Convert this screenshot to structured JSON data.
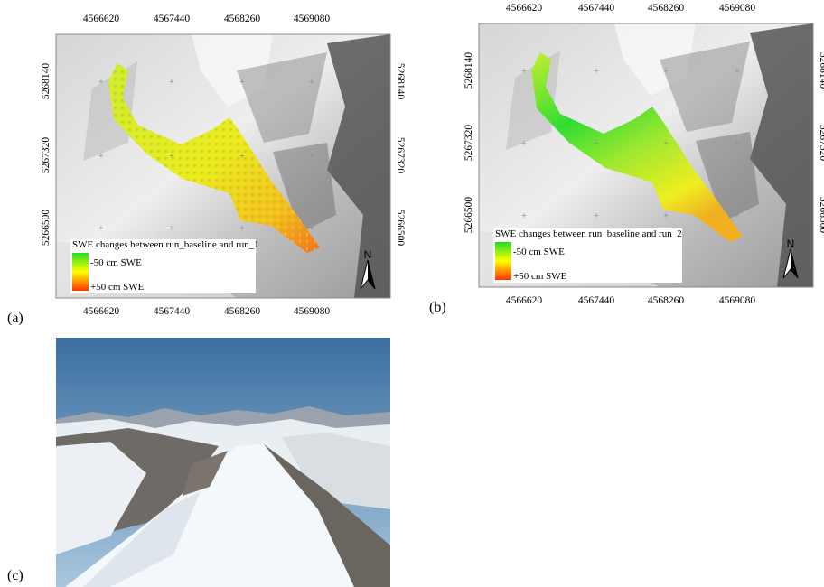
{
  "panels": [
    {
      "label": "(a)",
      "x_ticks": [
        "4566620",
        "4567440",
        "4568260",
        "4569080"
      ],
      "y_ticks": [
        "5268140",
        "5267320",
        "5266500"
      ],
      "legend": {
        "title": "SWE changes between run_baseline and run_1",
        "min": "-50 cm SWE",
        "max": "+50 cm SWE"
      },
      "north": "N"
    },
    {
      "label": "(b)",
      "x_ticks": [
        "4566620",
        "4567440",
        "4568260",
        "4569080"
      ],
      "y_ticks": [
        "5268140",
        "5267320",
        "5266500"
      ],
      "legend": {
        "title": "SWE changes between run_baseline and run_2",
        "min": "-50 cm SWE",
        "max": "+50 cm SWE"
      },
      "north": "N"
    },
    {
      "label": "(c)"
    }
  ]
}
